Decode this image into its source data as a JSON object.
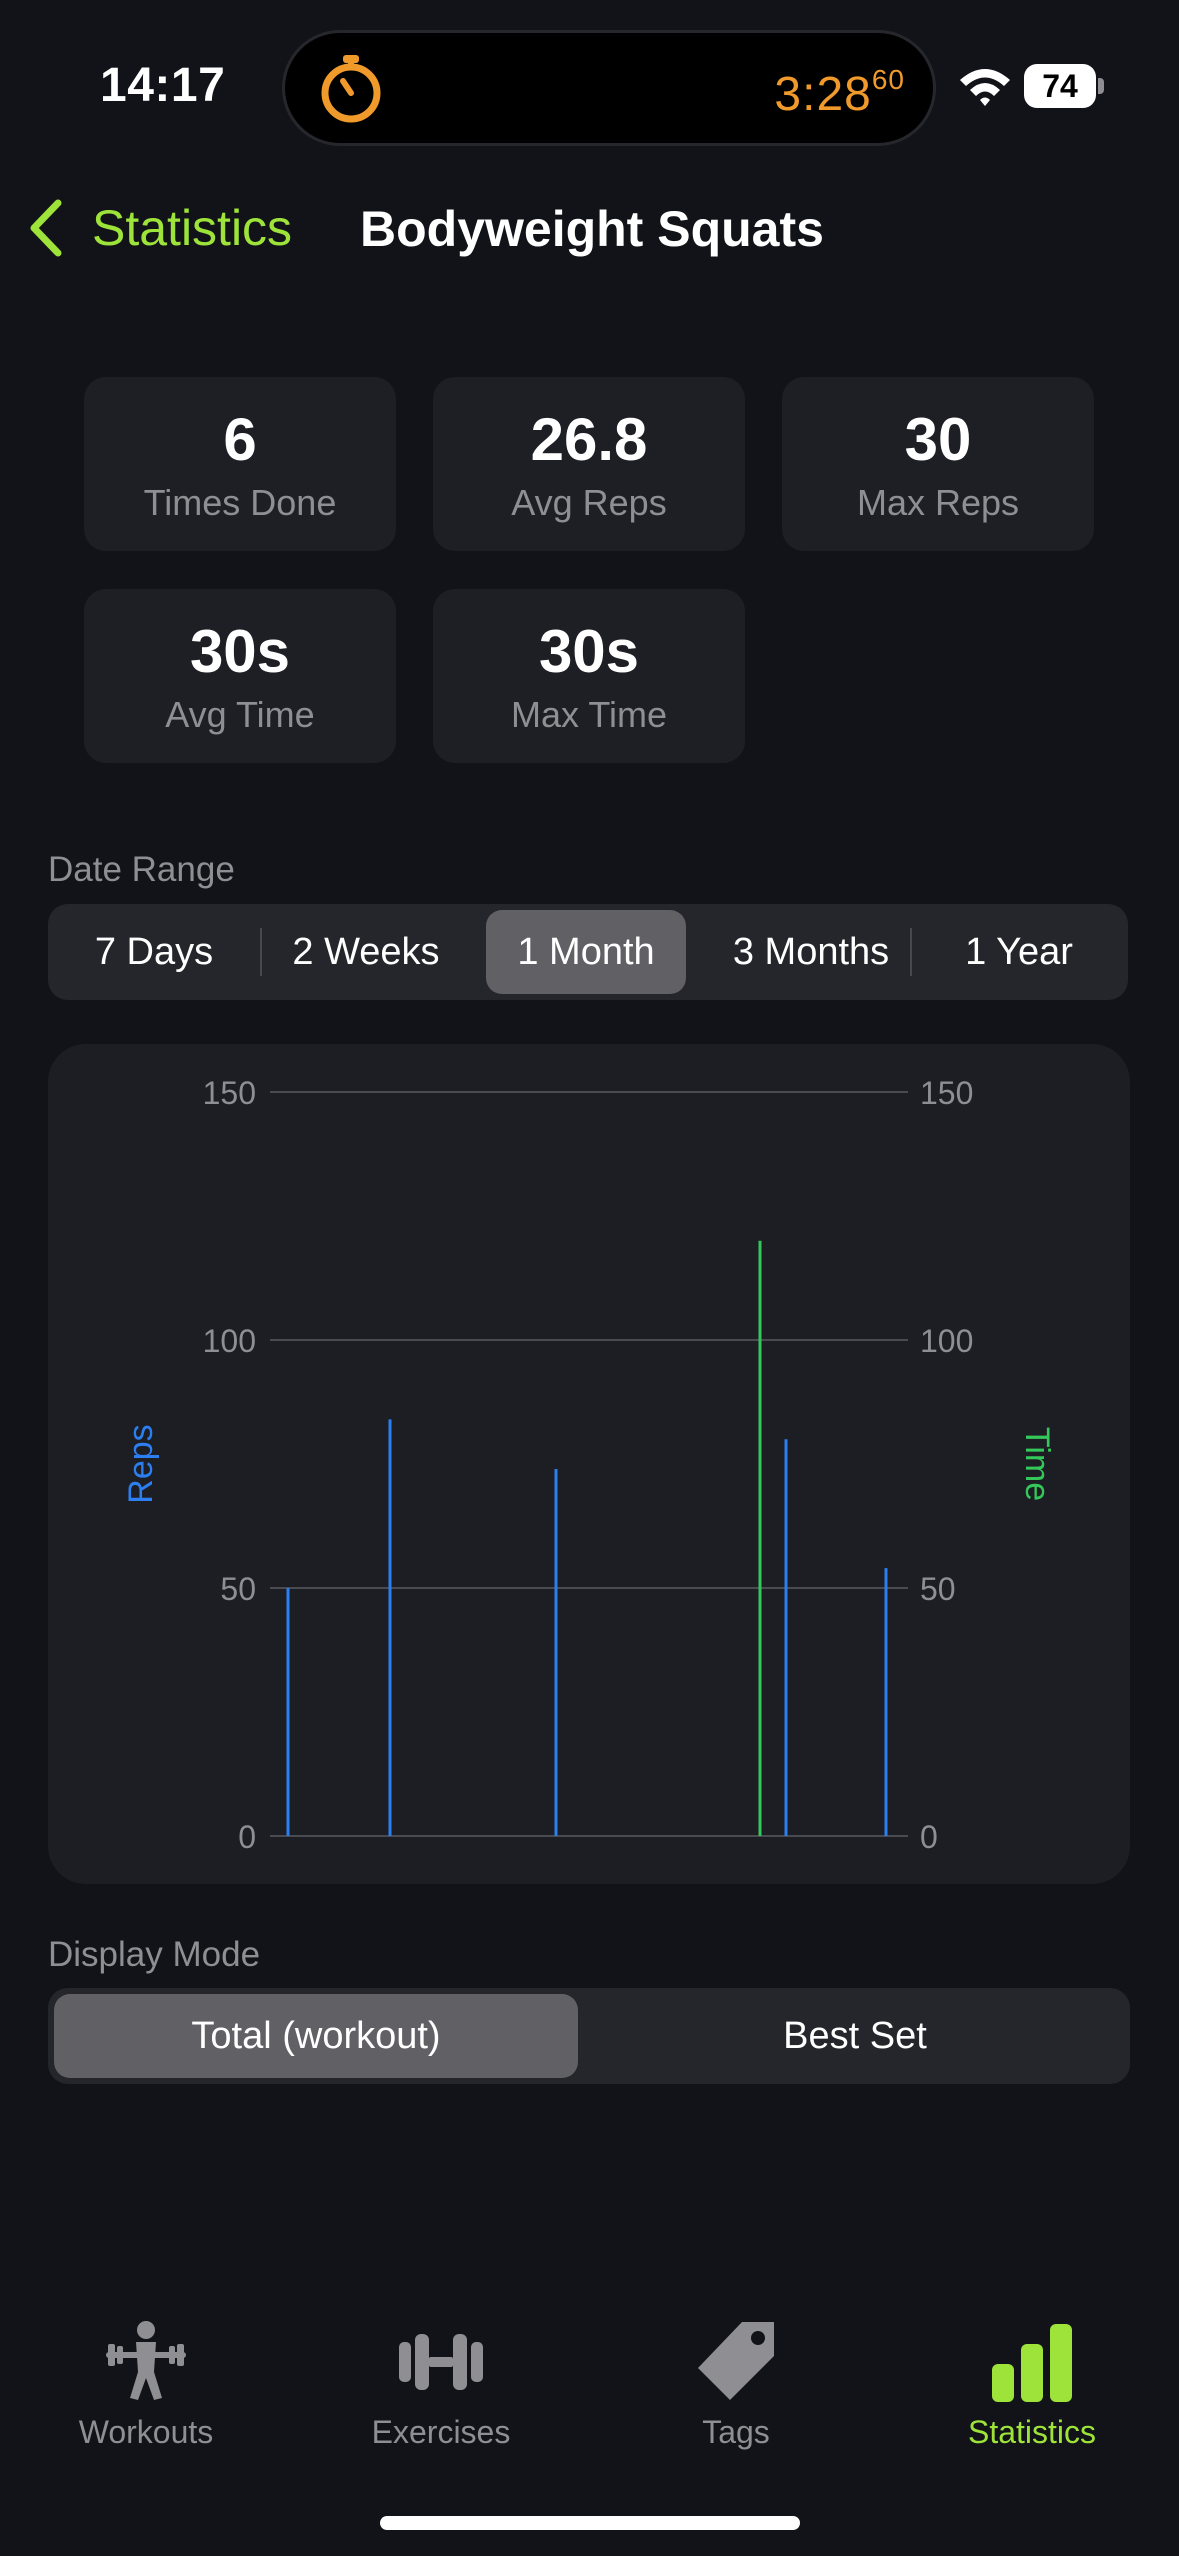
{
  "status_bar": {
    "time": "14:17",
    "timer": "3:28",
    "timer_fraction": "60",
    "battery": "74"
  },
  "nav": {
    "back_label": "Statistics",
    "title": "Bodyweight Squats"
  },
  "stats": [
    {
      "value": "6",
      "label": "Times Done"
    },
    {
      "value": "26.8",
      "label": "Avg Reps"
    },
    {
      "value": "30",
      "label": "Max Reps"
    },
    {
      "value": "30s",
      "label": "Avg Time"
    },
    {
      "value": "30s",
      "label": "Max Time"
    }
  ],
  "date_range": {
    "label": "Date Range",
    "options": [
      "7 Days",
      "2 Weeks",
      "1 Month",
      "3 Months",
      "1 Year"
    ],
    "selected": "1 Month"
  },
  "chart_data": {
    "type": "bar",
    "ylabel": "Reps",
    "y2label": "Time",
    "ylim": [
      0,
      150
    ],
    "y2lim": [
      0,
      150
    ],
    "yticks": [
      "0",
      "50",
      "100",
      "150"
    ],
    "y2ticks": [
      "0",
      "50",
      "100",
      "150"
    ],
    "grid": true,
    "colors": {
      "reps": "#2b7ff0",
      "time": "#34c759"
    },
    "series": [
      {
        "name": "Reps",
        "axis": "left",
        "values": [
          50,
          84,
          74,
          80,
          54
        ]
      },
      {
        "name": "Time",
        "axis": "right",
        "values": [
          120
        ]
      }
    ]
  },
  "display_mode": {
    "label": "Display Mode",
    "options": [
      "Total (workout)",
      "Best Set"
    ],
    "selected": "Total (workout)"
  },
  "tab_bar": {
    "items": [
      {
        "label": "Workouts",
        "icon": "weightlifter-icon"
      },
      {
        "label": "Exercises",
        "icon": "dumbbell-icon"
      },
      {
        "label": "Tags",
        "icon": "tag-icon"
      },
      {
        "label": "Statistics",
        "icon": "bar-chart-icon"
      }
    ],
    "active": "Statistics",
    "active_color": "#9ee33a"
  }
}
